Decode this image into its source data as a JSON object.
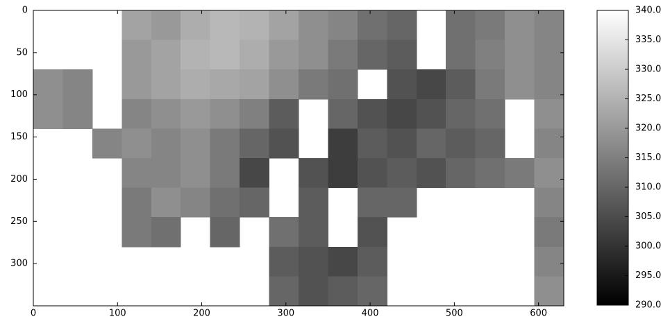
{
  "chart_data": {
    "type": "heatmap",
    "colormap": "gray",
    "xlim": [
      0,
      630
    ],
    "ylim": [
      350,
      0
    ],
    "xticks": [
      0,
      100,
      200,
      300,
      400,
      500,
      600
    ],
    "yticks": [
      0,
      50,
      100,
      150,
      200,
      250,
      300
    ],
    "z": [
      [
        null,
        null,
        null,
        322,
        320,
        324,
        326,
        325,
        322,
        318,
        316,
        312,
        310,
        null,
        312,
        314,
        318,
        316
      ],
      [
        null,
        null,
        null,
        320,
        322,
        325,
        326,
        324,
        320,
        318,
        314,
        310,
        308,
        null,
        312,
        315,
        318,
        316
      ],
      [
        318,
        316,
        null,
        320,
        322,
        324,
        323,
        322,
        318,
        314,
        312,
        null,
        306,
        304,
        308,
        314,
        318,
        316
      ],
      [
        318,
        316,
        null,
        316,
        318,
        320,
        318,
        315,
        308,
        null,
        310,
        306,
        304,
        306,
        310,
        312,
        null,
        318
      ],
      [
        null,
        null,
        316,
        318,
        316,
        318,
        314,
        310,
        306,
        null,
        302,
        308,
        306,
        310,
        308,
        310,
        null,
        316
      ],
      [
        null,
        null,
        null,
        316,
        316,
        318,
        314,
        304,
        null,
        306,
        302,
        306,
        308,
        306,
        310,
        312,
        314,
        318
      ],
      [
        null,
        null,
        null,
        314,
        318,
        316,
        312,
        310,
        null,
        308,
        null,
        310,
        310,
        null,
        null,
        null,
        null,
        316
      ],
      [
        null,
        null,
        null,
        314,
        312,
        null,
        310,
        null,
        312,
        308,
        null,
        306,
        null,
        null,
        null,
        null,
        null,
        314
      ],
      [
        null,
        null,
        null,
        null,
        null,
        null,
        null,
        null,
        308,
        306,
        304,
        308,
        null,
        null,
        null,
        null,
        null,
        316
      ],
      [
        null,
        null,
        null,
        null,
        null,
        null,
        null,
        null,
        310,
        306,
        308,
        310,
        null,
        null,
        null,
        null,
        null,
        318
      ]
    ],
    "clim": [
      290,
      340
    ],
    "cticks": [
      {
        "value": 290,
        "label": "290.0"
      },
      {
        "value": 295,
        "label": "295.0"
      },
      {
        "value": 300,
        "label": "300.0"
      },
      {
        "value": 305,
        "label": "305.0"
      },
      {
        "value": 310,
        "label": "310.0"
      },
      {
        "value": 315,
        "label": "315.0"
      },
      {
        "value": 320,
        "label": "320.0"
      },
      {
        "value": 325,
        "label": "325.0"
      },
      {
        "value": 330,
        "label": "330.0"
      },
      {
        "value": 335,
        "label": "335.0"
      },
      {
        "value": 340,
        "label": "340.0"
      }
    ]
  }
}
